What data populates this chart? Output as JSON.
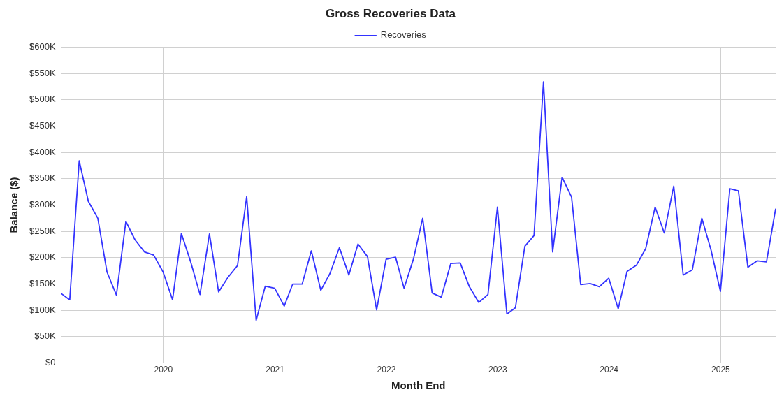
{
  "chart_data": {
    "type": "line",
    "title": "Gross Recoveries Data",
    "xlabel": "Month End",
    "ylabel": "Balance ($)",
    "x": [
      "2019-01-31",
      "2019-02-28",
      "2019-03-31",
      "2019-04-30",
      "2019-05-31",
      "2019-06-30",
      "2019-07-31",
      "2019-08-31",
      "2019-09-30",
      "2019-10-31",
      "2019-11-30",
      "2019-12-31",
      "2020-01-31",
      "2020-02-29",
      "2020-03-31",
      "2020-04-30",
      "2020-05-31",
      "2020-06-30",
      "2020-07-31",
      "2020-08-31",
      "2020-09-30",
      "2020-10-31",
      "2020-11-30",
      "2020-12-31",
      "2021-01-31",
      "2021-02-28",
      "2021-03-31",
      "2021-04-30",
      "2021-05-31",
      "2021-06-30",
      "2021-07-31",
      "2021-08-31",
      "2021-09-30",
      "2021-10-31",
      "2021-11-30",
      "2021-12-31",
      "2022-01-31",
      "2022-02-28",
      "2022-03-31",
      "2022-04-30",
      "2022-05-31",
      "2022-06-30",
      "2022-07-31",
      "2022-08-31",
      "2022-09-30",
      "2022-10-31",
      "2022-11-30",
      "2022-12-31",
      "2023-01-31",
      "2023-02-28",
      "2023-03-31",
      "2023-04-30",
      "2023-05-31",
      "2023-06-30",
      "2023-07-31",
      "2023-08-31",
      "2023-09-30",
      "2023-10-31",
      "2023-11-30",
      "2023-12-31",
      "2024-01-31",
      "2024-02-29",
      "2024-03-31",
      "2024-04-30",
      "2024-05-31",
      "2024-06-30",
      "2024-07-31",
      "2024-08-31",
      "2024-09-30",
      "2024-10-31",
      "2024-11-30",
      "2024-12-31",
      "2025-01-31",
      "2025-02-28",
      "2025-03-31",
      "2025-04-30",
      "2025-05-31",
      "2025-06-30"
    ],
    "series": [
      {
        "name": "Recoveries",
        "color": "#3333ff",
        "values": [
          132000,
          120000,
          384000,
          307000,
          275000,
          173000,
          129000,
          269000,
          234000,
          211000,
          205000,
          173000,
          120000,
          246000,
          191000,
          130000,
          245000,
          135000,
          163000,
          185000,
          316000,
          81000,
          146000,
          142000,
          108000,
          150000,
          150000,
          213000,
          138000,
          170000,
          219000,
          167000,
          226000,
          202000,
          101000,
          197000,
          201000,
          142000,
          198000,
          275000,
          133000,
          125000,
          189000,
          190000,
          145000,
          115000,
          130000,
          296000,
          93000,
          105000,
          222000,
          242000,
          534000,
          211000,
          353000,
          315000,
          149000,
          151000,
          145000,
          161000,
          103000,
          174000,
          186000,
          217000,
          296000,
          247000,
          336000,
          167000,
          177000,
          275000,
          215000,
          136000,
          331000,
          327000,
          182000,
          194000,
          192000,
          293000
        ]
      }
    ],
    "xlim": [
      "2019-01-31",
      "2025-06-30"
    ],
    "xticks": [
      "2020",
      "2021",
      "2022",
      "2023",
      "2024",
      "2025"
    ],
    "ylim": [
      0,
      600000
    ],
    "yticks": [
      {
        "value": 0,
        "label": "$0"
      },
      {
        "value": 50000,
        "label": "$50K"
      },
      {
        "value": 100000,
        "label": "$100K"
      },
      {
        "value": 150000,
        "label": "$150K"
      },
      {
        "value": 200000,
        "label": "$200K"
      },
      {
        "value": 250000,
        "label": "$250K"
      },
      {
        "value": 300000,
        "label": "$300K"
      },
      {
        "value": 350000,
        "label": "$350K"
      },
      {
        "value": 400000,
        "label": "$400K"
      },
      {
        "value": 450000,
        "label": "$450K"
      },
      {
        "value": 500000,
        "label": "$500K"
      },
      {
        "value": 550000,
        "label": "$550K"
      },
      {
        "value": 600000,
        "label": "$600K"
      }
    ],
    "grid": true,
    "legend": "top",
    "marker": "none",
    "line_style": "solid"
  }
}
